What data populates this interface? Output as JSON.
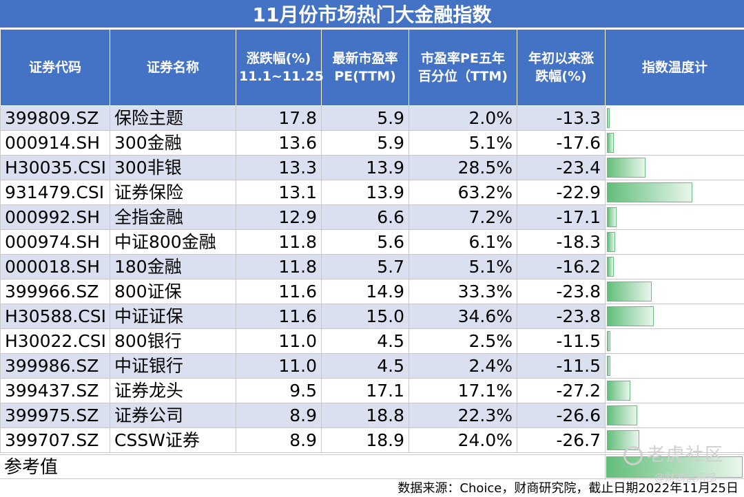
{
  "title": "11月份市场热门大金融指数",
  "headers": [
    "证券代码",
    "证券名称",
    "涨跌幅(%)\n11.1~11.25",
    "最新市盈率\nPE(TTM)",
    "市盈率PE五年\n百分位（TTM)",
    "年初以来涨\n跌幅(%)",
    "指数温度计"
  ],
  "rows": [
    {
      "code": "399809.SZ",
      "name": "保险主题",
      "chg": "17.8",
      "pe": "5.9",
      "pct": "2.0%",
      "ytd": "-13.3",
      "temp": 2.0
    },
    {
      "code": "000914.SH",
      "name": "300金融",
      "chg": "13.6",
      "pe": "5.9",
      "pct": "5.1%",
      "ytd": "-17.6",
      "temp": 5.1
    },
    {
      "code": "H30035.CSI",
      "name": "300非银",
      "chg": "13.3",
      "pe": "13.9",
      "pct": "28.5%",
      "ytd": "-23.4",
      "temp": 28.5
    },
    {
      "code": "931479.CSI",
      "name": "证券保险",
      "chg": "13.1",
      "pe": "13.9",
      "pct": "63.2%",
      "ytd": "-22.9",
      "temp": 63.2
    },
    {
      "code": "000992.SH",
      "name": "全指金融",
      "chg": "12.9",
      "pe": "6.6",
      "pct": "7.2%",
      "ytd": "-17.1",
      "temp": 7.2
    },
    {
      "code": "000974.SH",
      "name": "中证800金融",
      "chg": "11.8",
      "pe": "5.6",
      "pct": "6.1%",
      "ytd": "-18.3",
      "temp": 6.1
    },
    {
      "code": "000018.SH",
      "name": "180金融",
      "chg": "11.8",
      "pe": "5.7",
      "pct": "5.1%",
      "ytd": "-16.2",
      "temp": 5.1
    },
    {
      "code": "399966.SZ",
      "name": "800证保",
      "chg": "11.6",
      "pe": "14.9",
      "pct": "33.3%",
      "ytd": "-23.8",
      "temp": 33.3
    },
    {
      "code": "H30588.CSI",
      "name": "中证证保",
      "chg": "11.6",
      "pe": "15.0",
      "pct": "34.6%",
      "ytd": "-23.8",
      "temp": 34.6
    },
    {
      "code": "H30022.CSI",
      "name": "800银行",
      "chg": "11.0",
      "pe": "4.5",
      "pct": "2.5%",
      "ytd": "-11.5",
      "temp": 2.5
    },
    {
      "code": "399986.SZ",
      "name": "中证银行",
      "chg": "11.0",
      "pe": "4.5",
      "pct": "2.4%",
      "ytd": "-11.5",
      "temp": 2.4
    },
    {
      "code": "399437.SZ",
      "name": "证券龙头",
      "chg": "9.5",
      "pe": "17.1",
      "pct": "17.1%",
      "ytd": "-27.2",
      "temp": 17.1
    },
    {
      "code": "399975.SZ",
      "name": "证券公司",
      "chg": "8.9",
      "pe": "18.8",
      "pct": "22.3%",
      "ytd": "-26.6",
      "temp": 22.3
    },
    {
      "code": "399707.SZ",
      "name": "CSSW证券",
      "chg": "8.9",
      "pe": "18.9",
      "pct": "24.0%",
      "ytd": "-26.7",
      "temp": 24.0
    }
  ],
  "reference": {
    "label": "参考值",
    "temp": 100
  },
  "source": "数据来源：Choice，财商研究院，截止日期2022年11月25日",
  "watermark": "老虎社区",
  "watermark2": "@财商俱乐部",
  "colors": {
    "header": "#4472c4",
    "stripe": "#dbe0f0",
    "bar": "#63be7b"
  }
}
